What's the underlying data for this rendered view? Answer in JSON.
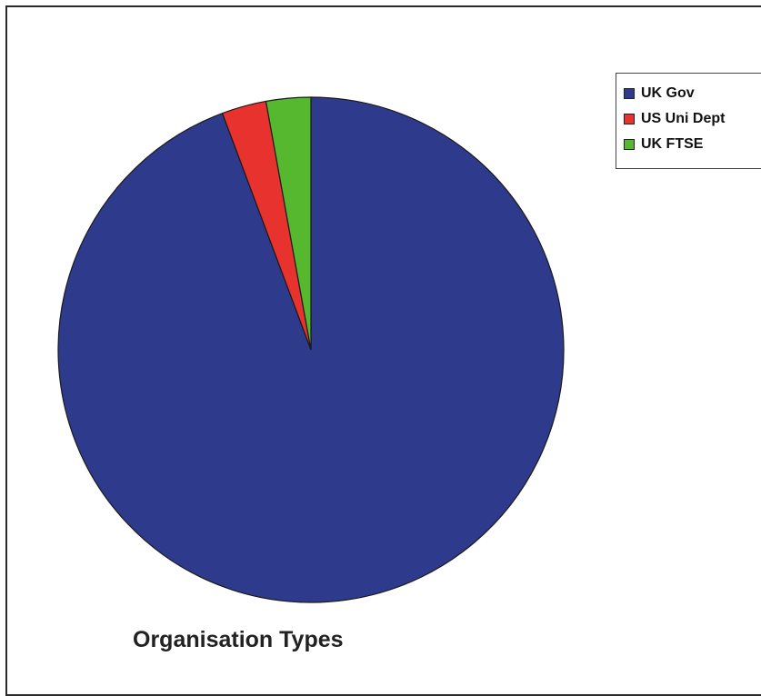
{
  "chart_data": {
    "type": "pie",
    "title": "Organisation Types",
    "categories": [
      "UK Gov",
      "US Uni Dept",
      "UK FTSE"
    ],
    "values": [
      94.3,
      2.85,
      2.85
    ],
    "colors": [
      "#2e3a8c",
      "#e8322d",
      "#55b82e"
    ],
    "start_angle_deg": 0,
    "legend_placement": "top-right"
  },
  "legend": {
    "items": [
      {
        "label": "UK Gov",
        "color": "#2e3a8c"
      },
      {
        "label": "US Uni Dept",
        "color": "#e8322d"
      },
      {
        "label": "UK FTSE",
        "color": "#55b82e"
      }
    ]
  }
}
